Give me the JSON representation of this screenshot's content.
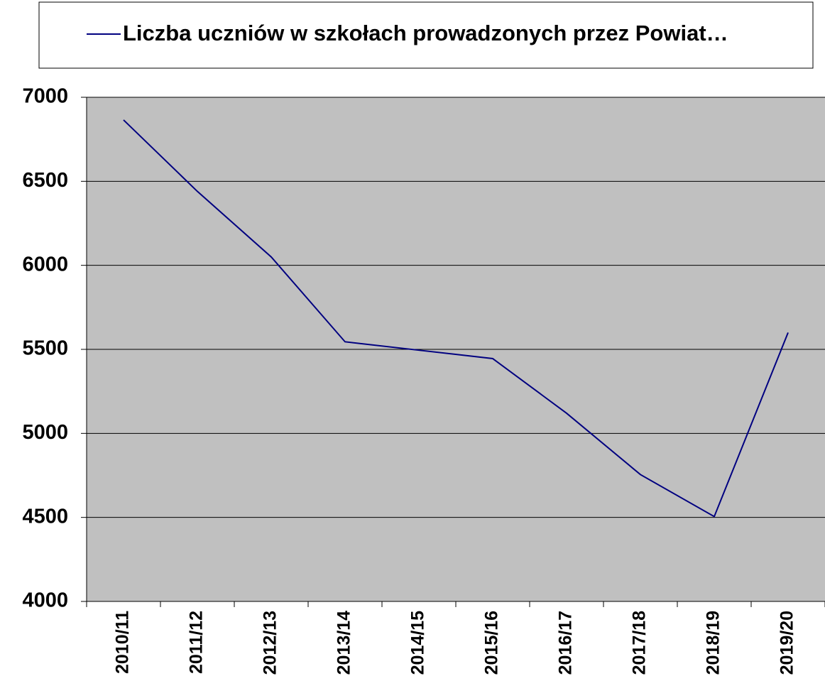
{
  "chart_data": {
    "type": "line",
    "categories": [
      "2010/11",
      "2011/12",
      "2012/13",
      "2013/14",
      "2014/15",
      "2015/16",
      "2016/17",
      "2017/18",
      "2018/19",
      "2019/20"
    ],
    "series": [
      {
        "name": "Liczba uczniów w szkołach prowadzonych przez Powiat…",
        "color": "#000080",
        "values": [
          6865,
          6440,
          6050,
          5545,
          5495,
          5445,
          5120,
          4755,
          4505,
          5600
        ]
      }
    ],
    "ylim": [
      4000,
      7000
    ],
    "yticks": [
      4000,
      4500,
      5000,
      5500,
      6000,
      6500,
      7000
    ],
    "grid": true,
    "legend": "top"
  }
}
